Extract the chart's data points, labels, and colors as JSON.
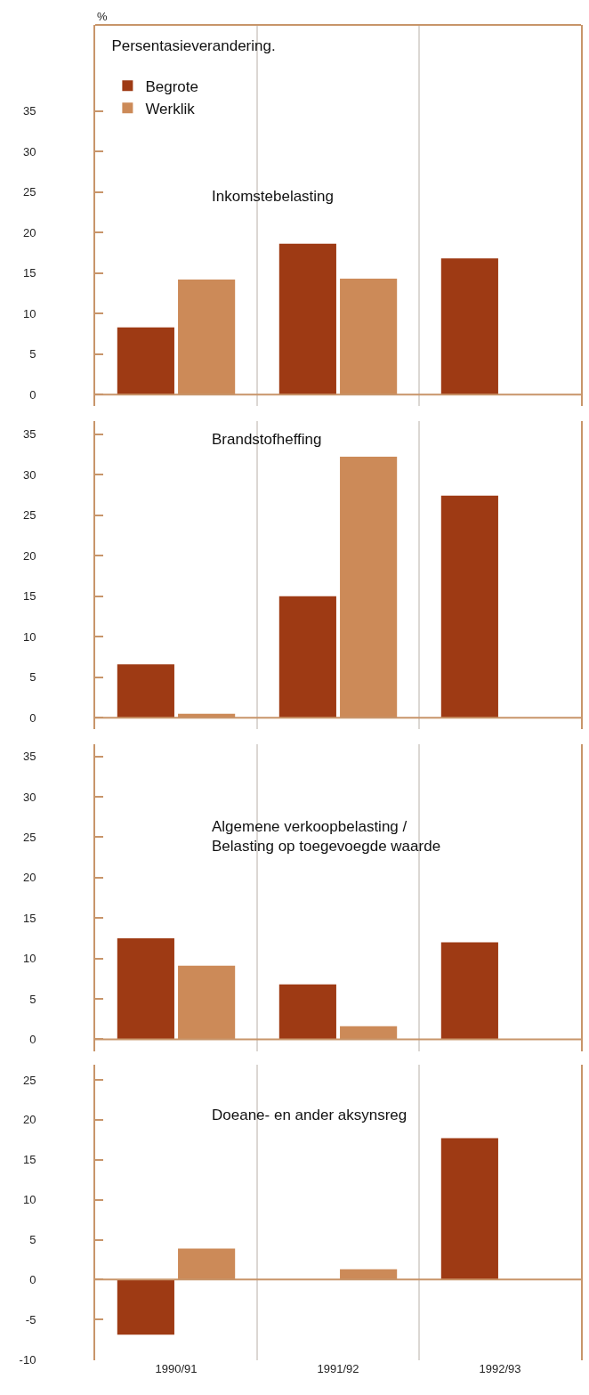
{
  "chart_data": [
    {
      "type": "bar",
      "title": "Inkomstebelasting",
      "ylabel": "%",
      "legend_title": "Persentasieverandering.",
      "legend": "top left",
      "grid": "x",
      "tick_labels": "y",
      "categories": [
        "1990/91",
        "1991/92",
        "1992/93"
      ],
      "ref_lines": [
        {
          "axis": "y",
          "value": 0,
          "color": "#c8956a"
        }
      ],
      "ylim": [
        -1.4,
        45.6
      ],
      "yticks": [
        0,
        5,
        10,
        15,
        20,
        25,
        30,
        35
      ],
      "series": [
        {
          "name": "Begrote",
          "color": "#9e3a14",
          "values": [
            8.3,
            18.6,
            16.8
          ]
        },
        {
          "name": "Werklik",
          "color": "#cc8a58",
          "values": [
            14.2,
            14.3,
            null
          ]
        }
      ]
    },
    {
      "type": "bar",
      "title": "Brandstofheffing",
      "grid": "x",
      "tick_labels": "y",
      "categories": [
        "1990/91",
        "1991/92",
        "1992/93"
      ],
      "ref_lines": [
        {
          "axis": "y",
          "value": 0,
          "color": "#c8956a"
        }
      ],
      "ylim": [
        -1.4,
        36.6
      ],
      "yticks": [
        0,
        5,
        10,
        15,
        20,
        25,
        30,
        35
      ],
      "series": [
        {
          "color": "#9e3a14",
          "values": [
            6.6,
            15.0,
            27.4
          ]
        },
        {
          "color": "#cc8a58",
          "values": [
            0.5,
            32.2,
            null
          ]
        }
      ]
    },
    {
      "type": "bar",
      "title": "Algemene verkoopbelasting /\nBelasting op toegevoegde waarde",
      "grid": "x",
      "tick_labels": "y",
      "categories": [
        "1990/91",
        "1991/92",
        "1992/93"
      ],
      "ref_lines": [
        {
          "axis": "y",
          "value": 0,
          "color": "#c8956a"
        }
      ],
      "ylim": [
        -1.5,
        36.5
      ],
      "yticks": [
        0,
        5,
        10,
        15,
        20,
        25,
        30,
        35
      ],
      "series": [
        {
          "color": "#9e3a14",
          "values": [
            12.5,
            6.8,
            12.0
          ]
        },
        {
          "color": "#cc8a58",
          "values": [
            9.1,
            1.6,
            null
          ]
        }
      ]
    },
    {
      "type": "bar",
      "title": "Doeane- en ander aksynsreg",
      "grid": "x",
      "categories": [
        "1990/91",
        "1991/92",
        "1992/93"
      ],
      "ref_lines": [
        {
          "axis": "y",
          "value": 0,
          "color": "#c8956a"
        }
      ],
      "ylim": [
        -10.1,
        26.9
      ],
      "yticks": [
        -10,
        -5,
        0,
        5,
        10,
        15,
        20,
        25
      ],
      "series": [
        {
          "color": "#9e3a14",
          "values": [
            -6.9,
            null,
            17.7
          ]
        },
        {
          "color": "#cc8a58",
          "values": [
            3.9,
            1.3,
            null
          ]
        }
      ]
    }
  ]
}
